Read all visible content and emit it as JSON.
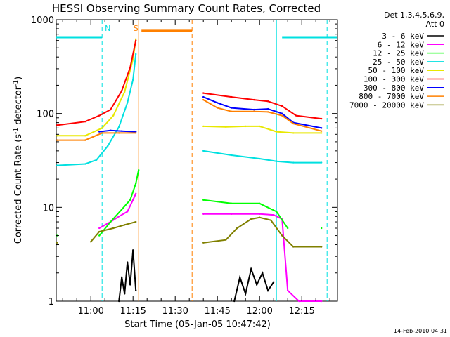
{
  "chart_data": {
    "type": "line",
    "title": "HESSI Observing Summary Count Rates, Corrected",
    "xlabel": "Start Time (05-Jan-05 10:47:42)",
    "ylabel": "Corrected Count Rate (s-1 detector-1)",
    "ylabel_parts": {
      "main": "Corrected Count Rate (s",
      "sup1": "-1",
      "mid": " detector",
      "sup2": "-1",
      "end": ")"
    },
    "y_scale": "log",
    "ylim": [
      1,
      1000
    ],
    "xlim": [
      "10:47:42",
      "12:27:42"
    ],
    "y_ticks": [
      1,
      10,
      100,
      1000
    ],
    "y_tick_labels": [
      "1",
      "10",
      "100",
      "1000"
    ],
    "x_ticks": [
      "11:00",
      "11:15",
      "11:30",
      "11:45",
      "12:00",
      "12:15"
    ],
    "legend_header": [
      "Det 1,3,4,5,6,9,",
      "Att 0"
    ],
    "timestamp": "14-Feb-2010 04:31",
    "markers": [
      {
        "label": "N",
        "color": "#00e0e0",
        "time": "11:06"
      },
      {
        "label": "S",
        "color": "#ff8000",
        "time": "11:16"
      }
    ],
    "bars": [
      {
        "name": "night",
        "color": "#00e0e0",
        "segments": [
          [
            "10:47:42",
            "11:04"
          ],
          [
            "12:08",
            "12:27:42"
          ]
        ],
        "value": 650
      },
      {
        "name": "saa",
        "color": "#ff8000",
        "segments": [
          [
            "11:18",
            "11:36"
          ]
        ],
        "value": 760
      }
    ],
    "vlines": [
      {
        "time": "11:04",
        "color": "#00e0e0",
        "style": "dashed"
      },
      {
        "time": "11:17",
        "color": "#ff8000",
        "style": "solid"
      },
      {
        "time": "11:36",
        "color": "#ff8000",
        "style": "dashed"
      },
      {
        "time": "12:06",
        "color": "#00e0e0",
        "style": "solid"
      },
      {
        "time": "12:24",
        "color": "#00e0e0",
        "style": "dashed"
      }
    ],
    "series": [
      {
        "name": "3 - 6 keV",
        "color": "#000000",
        "points": [
          [
            "11:10",
            1
          ],
          [
            "11:11",
            1.8
          ],
          [
            "11:12",
            1.2
          ],
          [
            "11:13",
            2.6
          ],
          [
            "11:14",
            1.5
          ],
          [
            "11:15",
            3.5
          ],
          [
            "11:16",
            1.3
          ],
          [
            "11:51",
            1
          ],
          [
            "11:53",
            1.8
          ],
          [
            "11:55",
            1.2
          ],
          [
            "11:57",
            2.2
          ],
          [
            "11:59",
            1.5
          ],
          [
            "12:01",
            2.0
          ],
          [
            "12:03",
            1.3
          ],
          [
            "12:05",
            1.6
          ]
        ]
      },
      {
        "name": "6 - 12 keV",
        "color": "#ff00ff",
        "points": [
          [
            "11:03",
            6
          ],
          [
            "11:07",
            7
          ],
          [
            "11:10",
            8
          ],
          [
            "11:13",
            9
          ],
          [
            "11:15",
            12
          ],
          [
            "11:16",
            14
          ],
          [
            "11:40",
            8.5
          ],
          [
            "11:50",
            8.5
          ],
          [
            "12:00",
            8.5
          ],
          [
            "12:05",
            8.3
          ],
          [
            "12:08",
            7.5
          ],
          [
            "12:10",
            1.3
          ],
          [
            "12:14",
            1
          ],
          [
            "12:22",
            1
          ]
        ]
      },
      {
        "name": "12 - 25 keV",
        "color": "#00ff00",
        "points": [
          [
            "10:48",
            5
          ],
          [
            "11:03",
            5
          ],
          [
            "11:07",
            7
          ],
          [
            "11:11",
            9.5
          ],
          [
            "11:14",
            12
          ],
          [
            "11:16",
            18
          ],
          [
            "11:17",
            25
          ],
          [
            "11:40",
            12
          ],
          [
            "11:50",
            11
          ],
          [
            "12:00",
            11
          ],
          [
            "12:06",
            9
          ],
          [
            "12:10",
            6
          ],
          [
            "12:22",
            6
          ]
        ]
      },
      {
        "name": "25 - 50 keV",
        "color": "#00e0e0",
        "points": [
          [
            "10:48",
            28
          ],
          [
            "10:58",
            29
          ],
          [
            "11:02",
            32
          ],
          [
            "11:06",
            45
          ],
          [
            "11:10",
            72
          ],
          [
            "11:13",
            130
          ],
          [
            "11:15",
            230
          ],
          [
            "11:16",
            430
          ],
          [
            "11:40",
            40
          ],
          [
            "11:50",
            36
          ],
          [
            "12:00",
            33
          ],
          [
            "12:06",
            31
          ],
          [
            "12:12",
            30
          ],
          [
            "12:22",
            30
          ]
        ]
      },
      {
        "name": "50 - 100 keV",
        "color": "#e8e800",
        "points": [
          [
            "10:48",
            58
          ],
          [
            "10:58",
            58
          ],
          [
            "11:04",
            70
          ],
          [
            "11:08",
            95
          ],
          [
            "11:12",
            170
          ],
          [
            "11:15",
            380
          ],
          [
            "11:16",
            620
          ],
          [
            "11:40",
            73
          ],
          [
            "11:48",
            72
          ],
          [
            "11:55",
            73
          ],
          [
            "12:00",
            73
          ],
          [
            "12:06",
            64
          ],
          [
            "12:12",
            62
          ],
          [
            "12:22",
            62
          ]
        ]
      },
      {
        "name": "100 - 300 keV",
        "color": "#ff0000",
        "points": [
          [
            "10:48",
            75
          ],
          [
            "10:58",
            82
          ],
          [
            "11:03",
            95
          ],
          [
            "11:07",
            110
          ],
          [
            "11:11",
            175
          ],
          [
            "11:14",
            310
          ],
          [
            "11:16",
            600
          ],
          [
            "11:40",
            165
          ],
          [
            "11:50",
            150
          ],
          [
            "11:58",
            140
          ],
          [
            "12:03",
            135
          ],
          [
            "12:08",
            120
          ],
          [
            "12:13",
            95
          ],
          [
            "12:22",
            88
          ]
        ]
      },
      {
        "name": "300 - 800 keV",
        "color": "#0000ff",
        "points": [
          [
            "11:03",
            64
          ],
          [
            "11:07",
            66
          ],
          [
            "11:11",
            65
          ],
          [
            "11:16",
            64
          ],
          [
            "11:40",
            150
          ],
          [
            "11:45",
            130
          ],
          [
            "11:50",
            115
          ],
          [
            "11:58",
            110
          ],
          [
            "12:03",
            112
          ],
          [
            "12:08",
            100
          ],
          [
            "12:12",
            80
          ],
          [
            "12:22",
            70
          ]
        ]
      },
      {
        "name": "800 - 7000 keV",
        "color": "#ff8000",
        "points": [
          [
            "10:48",
            52
          ],
          [
            "10:58",
            52
          ],
          [
            "11:04",
            62
          ],
          [
            "11:10",
            62
          ],
          [
            "11:16",
            62
          ],
          [
            "11:40",
            140
          ],
          [
            "11:45",
            115
          ],
          [
            "11:50",
            105
          ],
          [
            "11:58",
            105
          ],
          [
            "12:03",
            104
          ],
          [
            "12:08",
            95
          ],
          [
            "12:12",
            78
          ],
          [
            "12:22",
            65
          ]
        ]
      },
      {
        "name": "7000 - 20000 keV",
        "color": "#808000",
        "points": [
          [
            "10:48",
            4.2
          ],
          [
            "11:00",
            4.3
          ],
          [
            "11:03",
            5.5
          ],
          [
            "11:08",
            6
          ],
          [
            "11:12",
            6.5
          ],
          [
            "11:16",
            7
          ],
          [
            "11:40",
            4.2
          ],
          [
            "11:48",
            4.5
          ],
          [
            "11:52",
            6
          ],
          [
            "11:57",
            7.5
          ],
          [
            "12:00",
            7.8
          ],
          [
            "12:04",
            7.3
          ],
          [
            "12:08",
            5
          ],
          [
            "12:12",
            3.8
          ],
          [
            "12:22",
            3.8
          ]
        ]
      }
    ]
  }
}
